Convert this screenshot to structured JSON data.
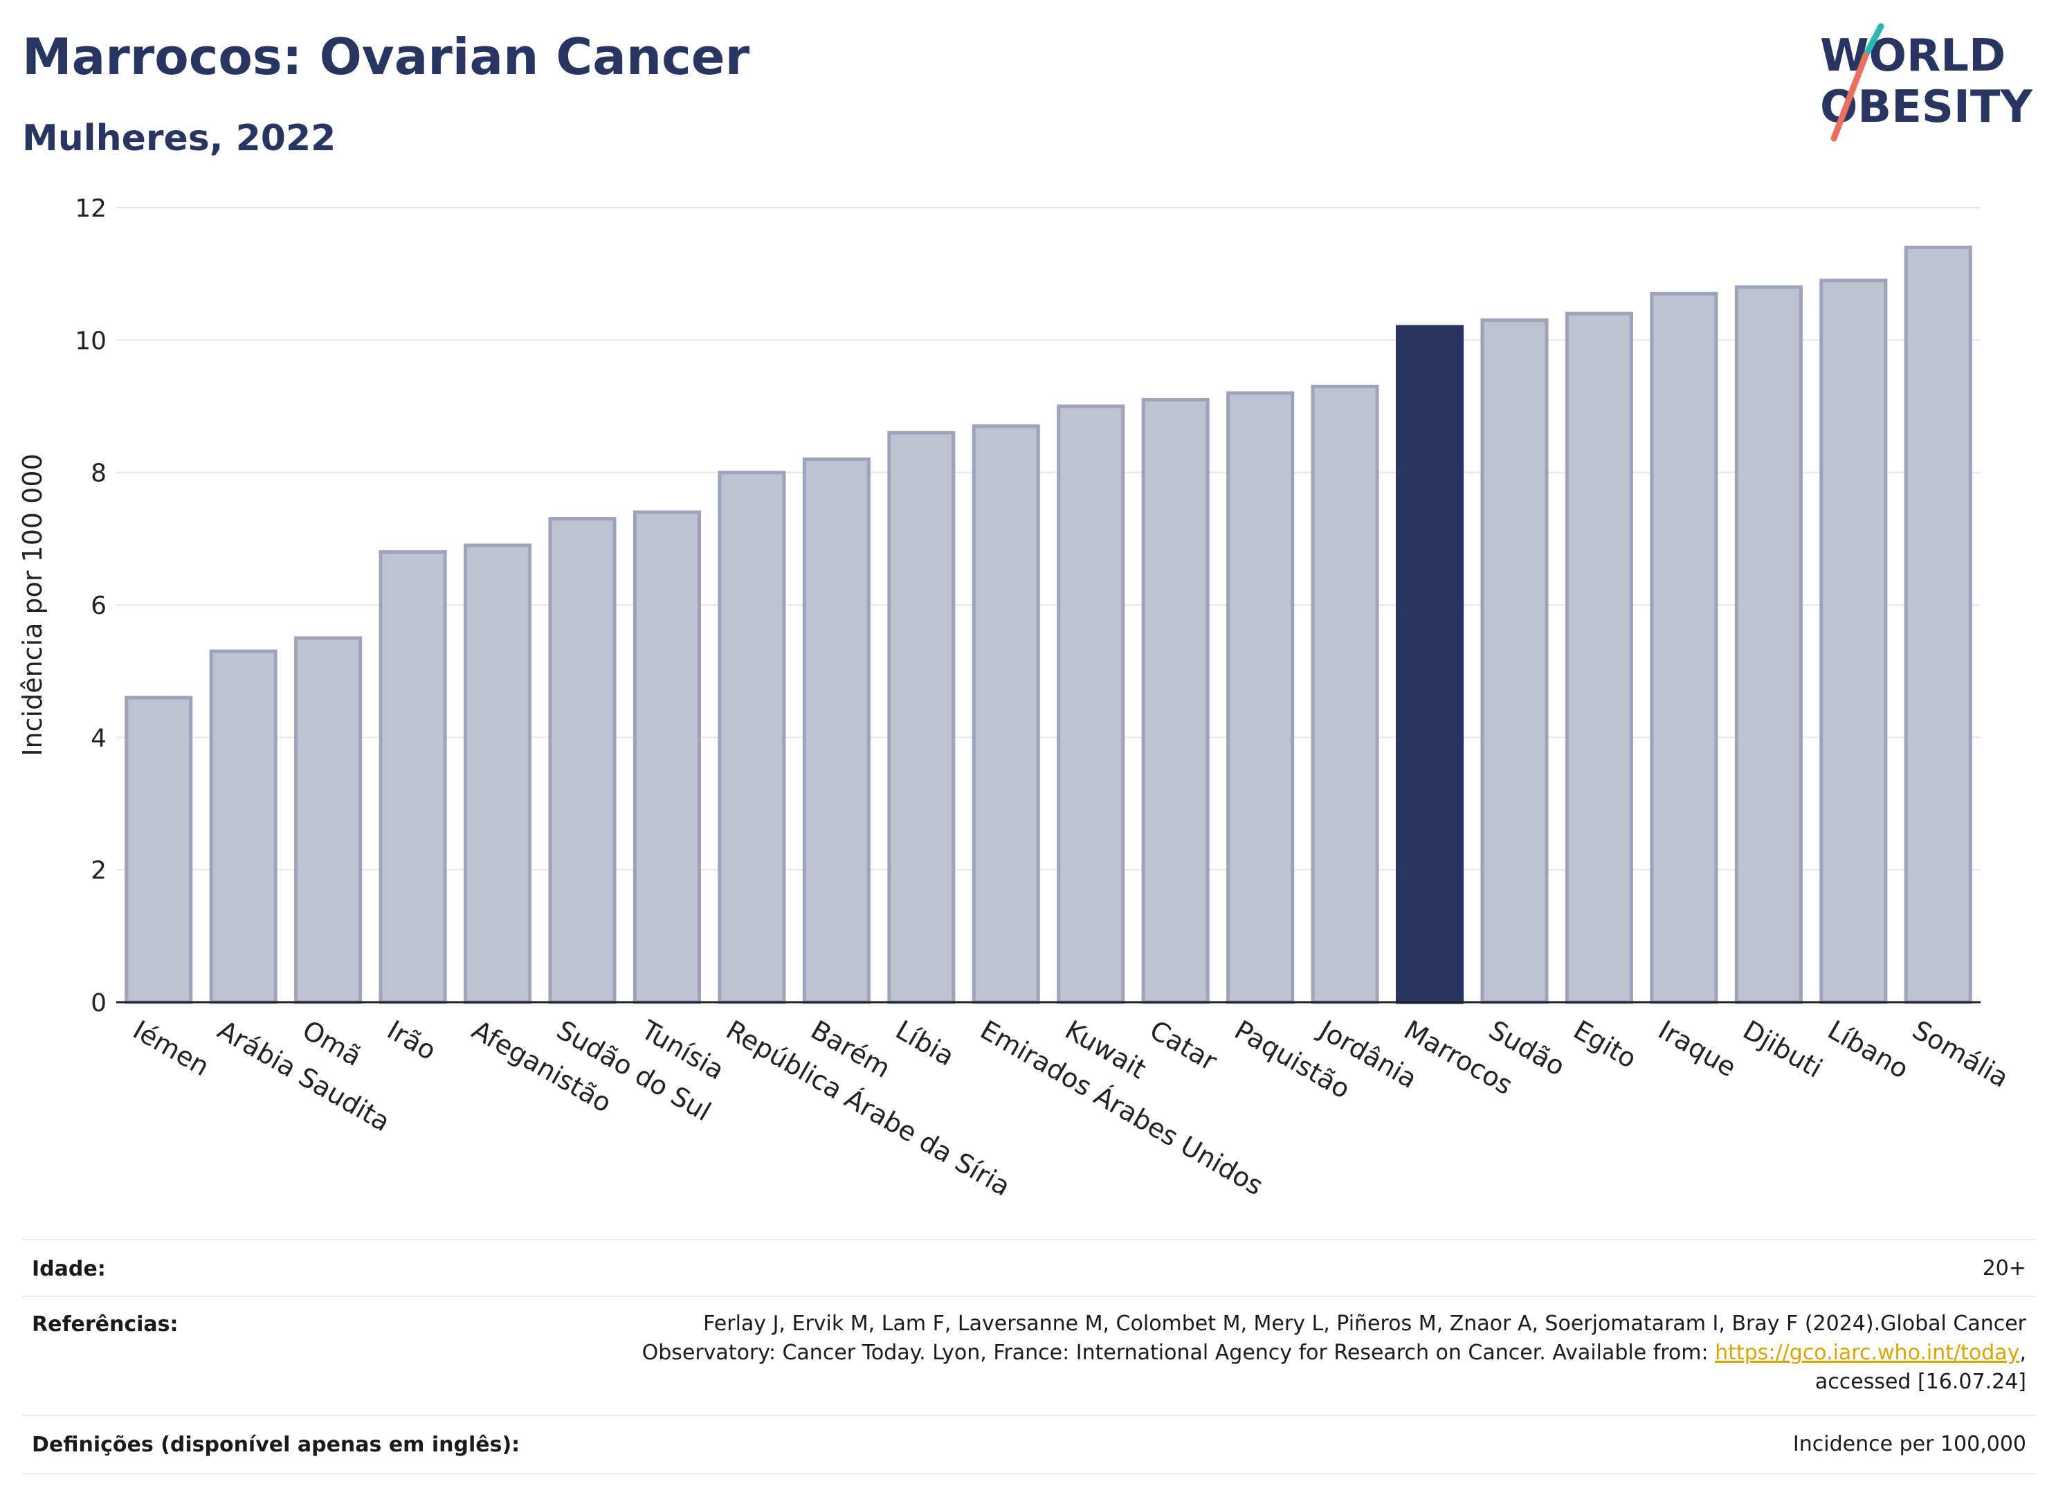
{
  "header": {
    "title": "Marrocos: Ovarian Cancer",
    "subtitle": "Mulheres, 2022"
  },
  "logo": {
    "line1": "WORLD",
    "line2": "OBESITY"
  },
  "chart_data": {
    "type": "bar",
    "ylabel": "Incidência por 100 000",
    "ylim": [
      0,
      12
    ],
    "yticks": [
      0,
      2,
      4,
      6,
      8,
      10,
      12
    ],
    "grid": true,
    "highlight": "Marrocos",
    "highlight_color": "#283561",
    "bar_color": "#bfc2d1",
    "bar_edge_color": "#9ea3bb",
    "categories": [
      "Iémen",
      "Arábia Saudita",
      "Omã",
      "Irão",
      "Afeganistão",
      "Sudão do Sul",
      "Tunísia",
      "República Árabe da Síria",
      "Barém",
      "Líbia",
      "Emirados Árabes Unidos",
      "Kuwait",
      "Catar",
      "Paquistão",
      "Jordânia",
      "Marrocos",
      "Sudão",
      "Egito",
      "Iraque",
      "Djibuti",
      "Líbano",
      "Somália"
    ],
    "values": [
      4.6,
      5.3,
      5.5,
      6.8,
      6.9,
      7.3,
      7.4,
      8.0,
      8.2,
      8.6,
      8.7,
      9.0,
      9.1,
      9.2,
      9.3,
      10.2,
      10.3,
      10.4,
      10.7,
      10.8,
      10.9,
      11.4
    ]
  },
  "meta": {
    "age_label": "Idade:",
    "age_value": "20+",
    "refs_label": "Referências:",
    "refs_line1": "Ferlay J, Ervik M, Lam F, Laversanne M, Colombet M, Mery L, Piñeros M, Znaor A, Soerjomataram I, Bray F (2024).Global Cancer",
    "refs_line2_pre": "Observatory: Cancer Today. Lyon, France: International Agency for Research on Cancer. Available from: ",
    "refs_link": "https://gco.iarc.who.int/today",
    "refs_line2_post": ",",
    "refs_line3": "accessed [16.07.24]",
    "defs_label": "Definições (disponível apenas em inglês):",
    "defs_value": "Incidence per 100,000"
  }
}
